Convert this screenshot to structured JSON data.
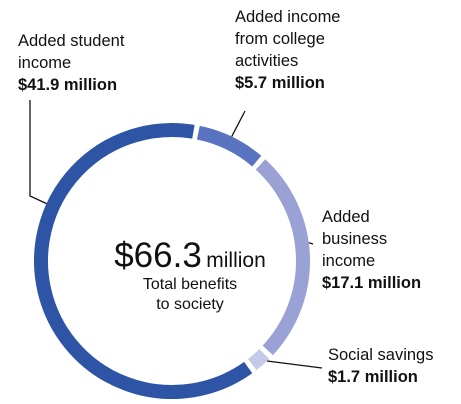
{
  "chart_data": {
    "type": "pie",
    "variant": "donut",
    "total": 66.3,
    "center": {
      "value": "$66.3",
      "unit": "million",
      "label_lines": [
        "Total benefits",
        "to society"
      ]
    },
    "segments": [
      {
        "label_lines": [
          "Added student",
          "income"
        ],
        "value_text": "$41.9 million",
        "value": 41.9,
        "color": "#2e54a6"
      },
      {
        "label_lines": [
          "Added income",
          "from college",
          "activities"
        ],
        "value_text": "$5.7 million",
        "value": 5.7,
        "color": "#5a73c0"
      },
      {
        "label_lines": [
          "Added",
          "business",
          "income"
        ],
        "value_text": "$17.1 million",
        "value": 17.1,
        "color": "#9aa2d5"
      },
      {
        "label_lines": [
          "Social savings"
        ],
        "value_text": "$1.7 million",
        "value": 1.7,
        "color": "#c5c9e8"
      }
    ]
  }
}
